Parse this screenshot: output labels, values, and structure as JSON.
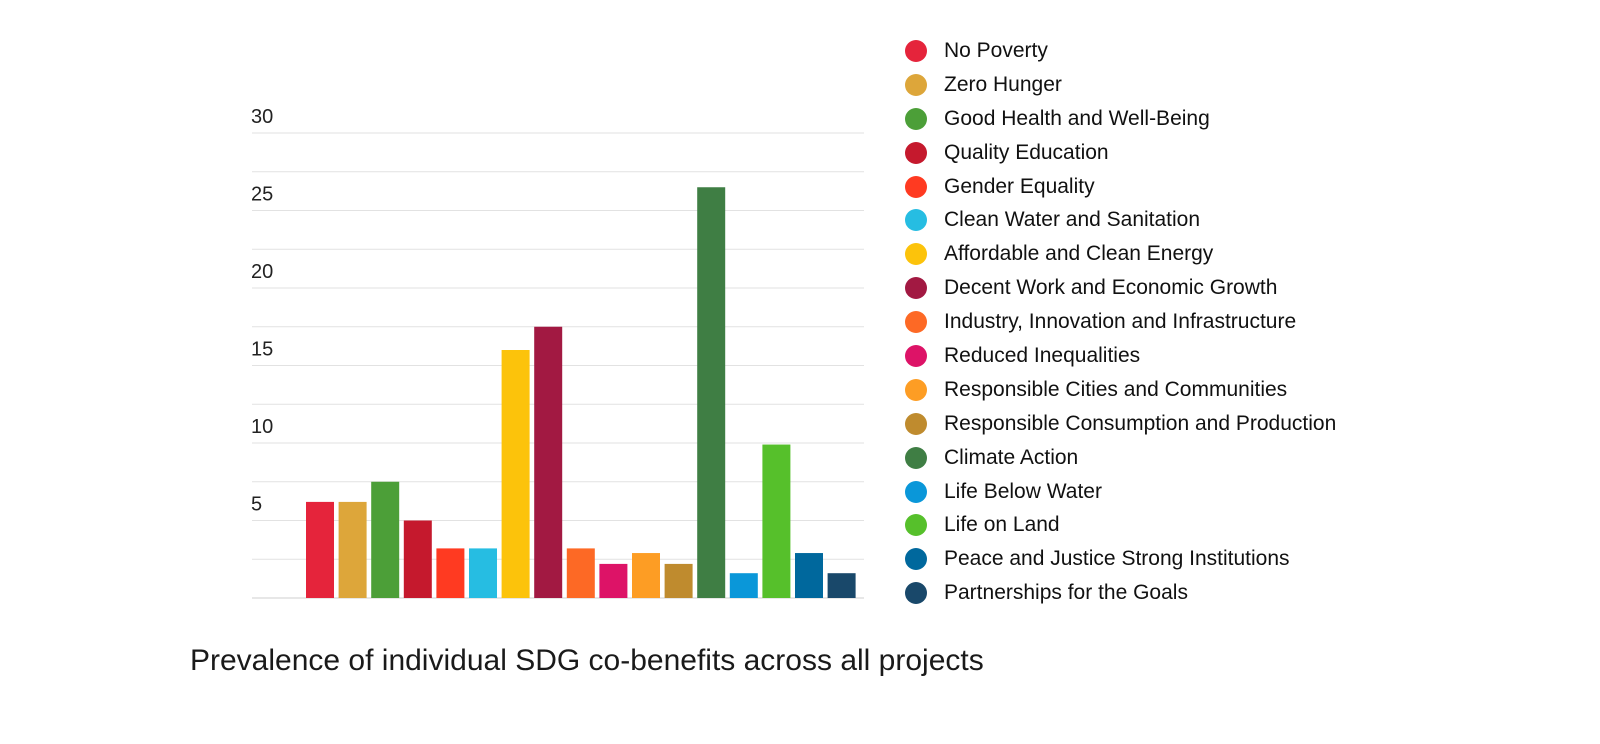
{
  "chart_data": {
    "type": "bar",
    "title": "Prevalence of individual SDG co-benefits across all projects",
    "xlabel": "",
    "ylabel": "",
    "ylim": [
      0,
      30
    ],
    "yticks": [
      5,
      10,
      15,
      20,
      25,
      30
    ],
    "grid": true,
    "legend_position": "right",
    "categories": [
      "No Poverty",
      "Zero Hunger",
      "Good Health and Well-Being",
      "Quality Education",
      "Gender Equality",
      "Clean Water and Sanitation",
      "Affordable and Clean Energy",
      "Decent Work and Economic Growth",
      "Industry, Innovation and Infrastructure",
      "Reduced Inequalities",
      "Responsible Cities and Communities",
      "Responsible Consumption and Production",
      "Climate Action",
      "Life Below Water",
      "Life on Land",
      "Peace and Justice Strong Institutions",
      "Partnerships for the Goals"
    ],
    "values": [
      6.2,
      6.2,
      7.5,
      5,
      3.2,
      3.2,
      16,
      17.5,
      3.2,
      2.2,
      2.9,
      2.2,
      26.5,
      1.6,
      9.9,
      2.9,
      1.6
    ],
    "colors": [
      "#e5243b",
      "#dda63a",
      "#4c9f38",
      "#c5192d",
      "#ff3a21",
      "#26bde2",
      "#fcc30b",
      "#a21942",
      "#fd6925",
      "#dd1367",
      "#fd9d24",
      "#bf8b2e",
      "#3f7e44",
      "#0a97d9",
      "#56c02b",
      "#00689d",
      "#19486a"
    ]
  }
}
